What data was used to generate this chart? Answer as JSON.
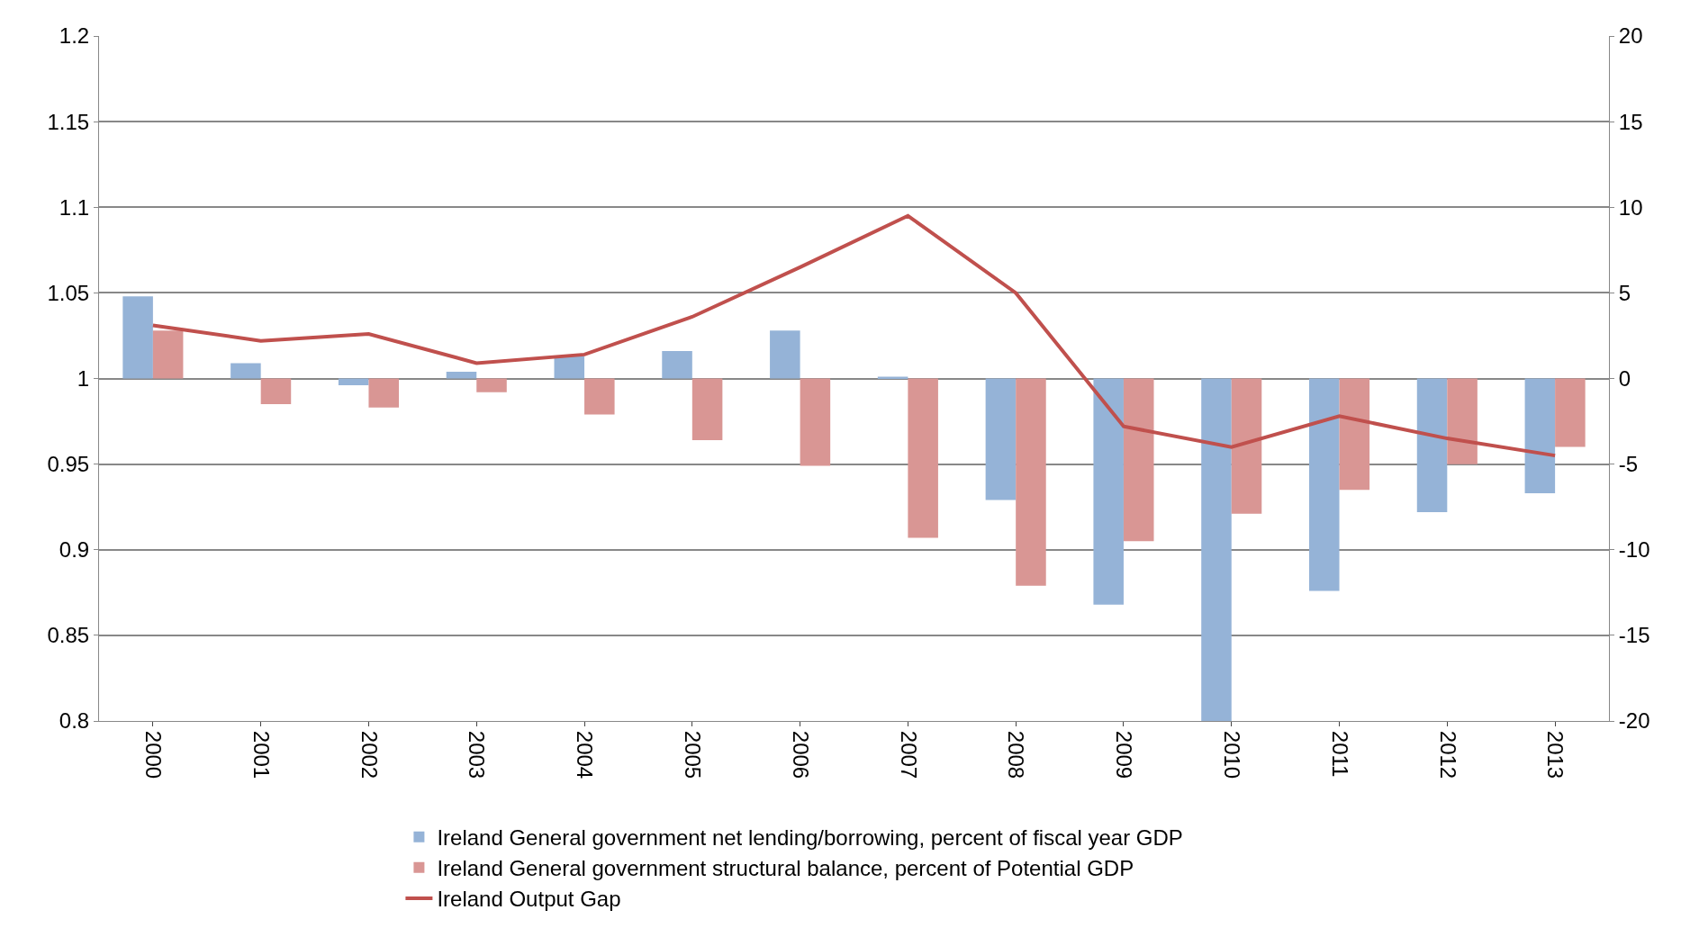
{
  "chart_data": {
    "type": "bar",
    "categories": [
      "2000",
      "2001",
      "2002",
      "2003",
      "2004",
      "2005",
      "2006",
      "2007",
      "2008",
      "2009",
      "2010",
      "2011",
      "2012",
      "2013"
    ],
    "series": [
      {
        "name": "Ireland General government net lending/borrowing, percent of fiscal year GDP",
        "color": "#95b3d7",
        "axis": "y2",
        "values": [
          4.8,
          0.9,
          -0.4,
          0.4,
          1.3,
          1.6,
          2.8,
          0.1,
          -7.1,
          -13.2,
          -20,
          -12.4,
          -7.8,
          -6.7
        ]
      },
      {
        "name": "Ireland General government structural balance, percent of Potential GDP",
        "color": "#d99694",
        "axis": "y2",
        "values": [
          2.8,
          -1.5,
          -1.7,
          -0.8,
          -2.1,
          -3.6,
          -5.1,
          -9.3,
          -12.1,
          -9.5,
          -7.9,
          -6.5,
          -5.0,
          -4.0
        ]
      },
      {
        "name": "Ireland Output Gap",
        "type": "line",
        "color": "#c0504d",
        "axis": "y2",
        "values": [
          3.1,
          2.2,
          2.6,
          0.9,
          1.4,
          3.6,
          6.5,
          9.5,
          5.0,
          -2.8,
          -4.0,
          -2.2,
          -3.5,
          -4.5
        ]
      }
    ],
    "ylim": [
      0.8,
      1.2
    ],
    "yticks": [
      0.8,
      0.85,
      0.9,
      0.95,
      1,
      1.05,
      1.1,
      1.15,
      1.2
    ],
    "y2lim": [
      -20,
      20
    ],
    "y2ticks": [
      -20,
      -15,
      -10,
      -5,
      0,
      5,
      10,
      15,
      20
    ],
    "grid": "y",
    "legend": "bottom",
    "marker": "none",
    "line_style": "solid"
  }
}
